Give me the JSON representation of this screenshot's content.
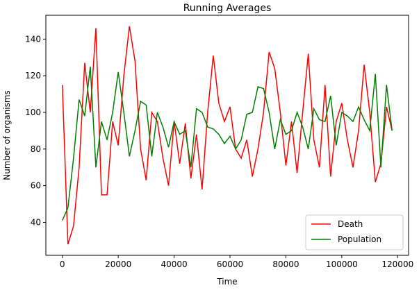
{
  "chart_data": {
    "type": "line",
    "title": "Running Averages",
    "xlabel": "Time",
    "ylabel": "Number of organisms",
    "x": [
      0,
      2000,
      4000,
      6000,
      8000,
      10000,
      12000,
      14000,
      16000,
      18000,
      20000,
      22000,
      24000,
      26000,
      28000,
      30000,
      32000,
      34000,
      36000,
      38000,
      40000,
      42000,
      44000,
      46000,
      48000,
      50000,
      52000,
      54000,
      56000,
      58000,
      60000,
      62000,
      64000,
      66000,
      68000,
      70000,
      72000,
      74000,
      76000,
      78000,
      80000,
      82000,
      84000,
      86000,
      88000,
      90000,
      92000,
      94000,
      96000,
      98000,
      100000,
      102000,
      104000,
      106000,
      108000,
      110000,
      112000,
      114000,
      116000,
      118000
    ],
    "series": [
      {
        "name": "Death",
        "color": "#ff0000",
        "values": [
          115,
          28,
          38,
          70,
          127,
          100,
          146,
          55,
          55,
          95,
          82,
          120,
          147,
          128,
          80,
          63,
          100,
          95,
          75,
          60,
          95,
          72,
          94,
          64,
          88,
          58,
          100,
          131,
          105,
          95,
          103,
          80,
          75,
          85,
          65,
          80,
          100,
          133,
          124,
          100,
          71,
          95,
          67,
          100,
          132,
          85,
          70,
          115,
          65,
          95,
          105,
          85,
          70,
          90,
          126,
          100,
          62,
          72,
          103,
          90
        ]
      },
      {
        "name": "Population",
        "color": "#008000",
        "values": [
          41,
          48,
          75,
          107,
          98,
          125,
          70,
          95,
          85,
          100,
          122,
          100,
          76,
          90,
          106,
          104,
          76,
          100,
          92,
          81,
          95,
          88,
          90,
          70,
          102,
          100,
          92,
          91,
          88,
          83,
          87,
          80,
          85,
          99,
          100,
          114,
          113,
          100,
          80,
          96,
          88,
          90,
          100,
          92,
          80,
          102,
          96,
          95,
          109,
          82,
          100,
          98,
          95,
          103,
          96,
          90,
          121,
          70,
          115,
          90
        ]
      }
    ],
    "xlim": [
      -5900,
      123900
    ],
    "ylim": [
      22,
      153
    ],
    "xticks": [
      0,
      20000,
      40000,
      60000,
      80000,
      100000,
      120000
    ],
    "yticks": [
      40,
      60,
      80,
      100,
      120,
      140
    ],
    "legend": "lower right"
  }
}
